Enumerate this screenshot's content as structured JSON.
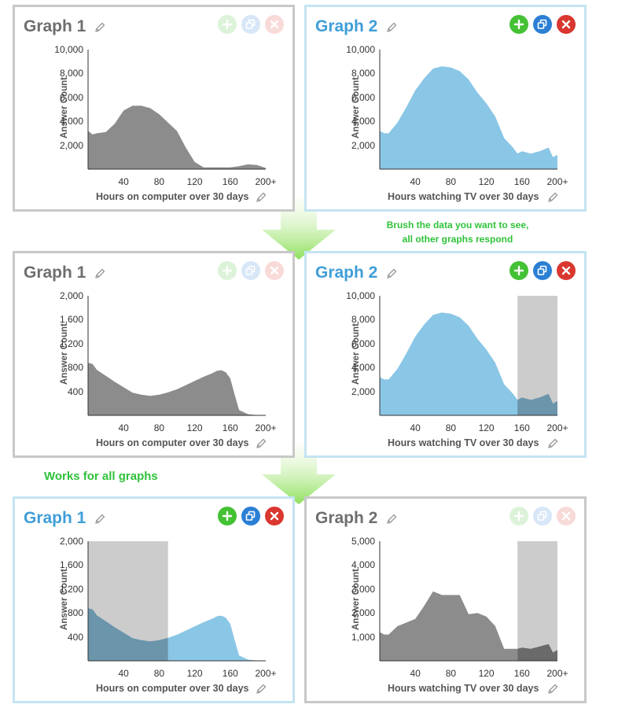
{
  "rows": [
    {
      "panels": [
        {
          "title": "Graph 1",
          "active": false,
          "brush": null,
          "ylabel": "Answer Count",
          "xlabel": "Hours on computer over 30 days",
          "yticks": [
            "10,000",
            "8,000",
            "6,000",
            "4,000",
            "2,000"
          ],
          "ymax": 10000,
          "xticks": [
            "40",
            "80",
            "120",
            "160",
            "200+"
          ],
          "xmin": 0,
          "xmax": 200,
          "fill_color": "#8c8c8c",
          "highlight_color": "#8c8c8c",
          "buttons": {
            "add": "+",
            "duplicate": "⧉",
            "close": "✕"
          }
        },
        {
          "title": "Graph 2",
          "active": true,
          "brush": null,
          "ylabel": "Answer Count",
          "xlabel": "Hours watching TV over 30 days",
          "yticks": [
            "10,000",
            "8,000",
            "6,000",
            "4,000",
            "2,000"
          ],
          "ymax": 10000,
          "xticks": [
            "40",
            "80",
            "120",
            "160",
            "200+"
          ],
          "xmin": 0,
          "xmax": 200,
          "fill_color": "#8ac6e6",
          "highlight_color": "#8ac6e6",
          "buttons": {
            "add": "+",
            "duplicate": "⧉",
            "close": "✕"
          }
        }
      ]
    },
    {
      "panels": [
        {
          "title": "Graph 1",
          "active": false,
          "brush": null,
          "ylabel": "Answer Count",
          "xlabel": "Hours on computer over 30 days",
          "yticks": [
            "2,000",
            "1,600",
            "1,200",
            "800",
            "400"
          ],
          "ymax": 2000,
          "xticks": [
            "40",
            "80",
            "120",
            "160",
            "200+"
          ],
          "xmin": 0,
          "xmax": 200,
          "fill_color": "#8c8c8c",
          "highlight_color": "#8c8c8c",
          "buttons": {
            "add": "+",
            "duplicate": "⧉",
            "close": "✕"
          }
        },
        {
          "title": "Graph 2",
          "active": true,
          "brush": [
            155,
            200
          ],
          "ylabel": "Answer Count",
          "xlabel": "Hours watching TV over 30 days",
          "yticks": [
            "10,000",
            "8,000",
            "6,000",
            "4,000",
            "2,000"
          ],
          "ymax": 10000,
          "xticks": [
            "40",
            "80",
            "120",
            "160",
            "200+"
          ],
          "xmin": 0,
          "xmax": 200,
          "fill_color": "#8ac6e6",
          "highlight_color": "#6a95ab",
          "buttons": {
            "add": "+",
            "duplicate": "⧉",
            "close": "✕"
          }
        }
      ]
    },
    {
      "panels": [
        {
          "title": "Graph 1",
          "active": true,
          "brush": [
            0,
            90
          ],
          "ylabel": "Answer Count",
          "xlabel": "Hours on computer over 30 days",
          "yticks": [
            "2,000",
            "1,600",
            "1,200",
            "800",
            "400"
          ],
          "ymax": 2000,
          "xticks": [
            "40",
            "80",
            "120",
            "160",
            "200+"
          ],
          "xmin": 0,
          "xmax": 200,
          "fill_color": "#8ac6e6",
          "highlight_color": "#6a95ab",
          "buttons": {
            "add": "+",
            "duplicate": "⧉",
            "close": "✕"
          }
        },
        {
          "title": "Graph 2",
          "active": false,
          "brush": [
            155,
            200
          ],
          "ylabel": "Answer Count",
          "xlabel": "Hours watching TV over 30 days",
          "yticks": [
            "5,000",
            "4,000",
            "3,000",
            "2,000",
            "1,000"
          ],
          "ymax": 5000,
          "xticks": [
            "40",
            "80",
            "120",
            "160",
            "200+"
          ],
          "xmin": 0,
          "xmax": 200,
          "fill_color": "#8c8c8c",
          "highlight_color": "#6a6a6a",
          "buttons": {
            "add": "+",
            "duplicate": "⧉",
            "close": "✕"
          }
        }
      ]
    }
  ],
  "annotations": {
    "brush_note_line1": "Brush the data you want to see,",
    "brush_note_line2": "all other graphs respond",
    "works_note": "Works for all graphs"
  },
  "colors": {
    "active_border": "#c4e4f2",
    "inactive_border": "#c8c8c8",
    "active_title": "#3f9ed8",
    "inactive_title": "#6e6e6e",
    "annotation_green": "#2fc23a",
    "brush_overlay": "#cccccc"
  },
  "chart_data": [
    {
      "type": "area",
      "title": "Graph 1",
      "xlabel": "Hours on computer over 30 days",
      "ylabel": "Answer Count",
      "ylim": [
        0,
        10000
      ],
      "x": [
        0,
        5,
        10,
        20,
        30,
        40,
        50,
        60,
        70,
        80,
        90,
        100,
        110,
        120,
        130,
        140,
        150,
        160,
        170,
        180,
        190,
        200
      ],
      "series": [
        {
          "values": [
            3200,
            2900,
            3000,
            3100,
            3800,
            4900,
            5300,
            5300,
            5100,
            4600,
            3900,
            3200,
            1800,
            600,
            150,
            150,
            150,
            150,
            250,
            400,
            350,
            100
          ]
        }
      ]
    },
    {
      "type": "area",
      "title": "Graph 2",
      "xlabel": "Hours watching TV over 30 days",
      "ylabel": "Answer Count",
      "ylim": [
        0,
        10000
      ],
      "x": [
        0,
        5,
        10,
        20,
        30,
        40,
        50,
        60,
        70,
        80,
        90,
        100,
        110,
        120,
        130,
        140,
        150,
        155,
        160,
        170,
        180,
        190,
        195,
        200
      ],
      "series": [
        {
          "values": [
            3200,
            3000,
            3000,
            3900,
            5200,
            6600,
            7600,
            8400,
            8600,
            8500,
            8200,
            7500,
            6400,
            5500,
            4400,
            2600,
            1800,
            1300,
            1500,
            1300,
            1500,
            1800,
            1000,
            1200
          ]
        }
      ]
    },
    {
      "type": "area",
      "title": "Graph 1",
      "xlabel": "Hours on computer over 30 days",
      "ylabel": "Answer Count",
      "ylim": [
        0,
        2000
      ],
      "x": [
        0,
        5,
        10,
        20,
        30,
        40,
        50,
        60,
        70,
        80,
        90,
        100,
        110,
        120,
        130,
        140,
        145,
        150,
        155,
        160,
        165,
        170,
        180,
        190,
        200
      ],
      "series": [
        {
          "values": [
            880,
            860,
            760,
            660,
            560,
            470,
            380,
            345,
            325,
            345,
            385,
            435,
            505,
            575,
            645,
            705,
            745,
            755,
            720,
            620,
            350,
            90,
            20,
            5,
            0
          ]
        }
      ]
    },
    {
      "type": "area",
      "title": "Graph 2",
      "xlabel": "Hours watching TV over 30 days",
      "ylabel": "Answer Count",
      "ylim": [
        0,
        10000
      ],
      "brush": [
        155,
        200
      ],
      "x": [
        0,
        5,
        10,
        20,
        30,
        40,
        50,
        60,
        70,
        80,
        90,
        100,
        110,
        120,
        130,
        140,
        150,
        155,
        160,
        170,
        180,
        190,
        195,
        200
      ],
      "series": [
        {
          "values": [
            3200,
            3000,
            3000,
            3900,
            5200,
            6600,
            7600,
            8400,
            8600,
            8500,
            8200,
            7500,
            6400,
            5500,
            4400,
            2600,
            1800,
            1300,
            1500,
            1300,
            1500,
            1800,
            1000,
            1200
          ]
        }
      ]
    },
    {
      "type": "area",
      "title": "Graph 1",
      "xlabel": "Hours on computer over 30 days",
      "ylabel": "Answer Count",
      "ylim": [
        0,
        2000
      ],
      "brush": [
        0,
        90
      ],
      "x": [
        0,
        5,
        10,
        20,
        30,
        40,
        50,
        60,
        70,
        80,
        90,
        100,
        110,
        120,
        130,
        140,
        145,
        150,
        155,
        160,
        165,
        170,
        180,
        190,
        200
      ],
      "series": [
        {
          "values": [
            880,
            860,
            760,
            660,
            560,
            470,
            380,
            345,
            325,
            345,
            385,
            435,
            505,
            575,
            645,
            705,
            745,
            755,
            720,
            620,
            350,
            90,
            20,
            5,
            0
          ]
        }
      ]
    },
    {
      "type": "area",
      "title": "Graph 2",
      "xlabel": "Hours watching TV over 30 days",
      "ylabel": "Answer Count",
      "ylim": [
        0,
        5000
      ],
      "brush": [
        155,
        200
      ],
      "x": [
        0,
        5,
        10,
        20,
        30,
        40,
        50,
        60,
        70,
        80,
        90,
        100,
        110,
        120,
        130,
        140,
        150,
        155,
        160,
        170,
        180,
        190,
        195,
        200
      ],
      "series": [
        {
          "values": [
            1200,
            1100,
            1100,
            1450,
            1600,
            1750,
            2300,
            2900,
            2750,
            2750,
            2750,
            1950,
            2000,
            1850,
            1450,
            500,
            500,
            500,
            550,
            500,
            600,
            700,
            350,
            450
          ]
        }
      ]
    }
  ]
}
